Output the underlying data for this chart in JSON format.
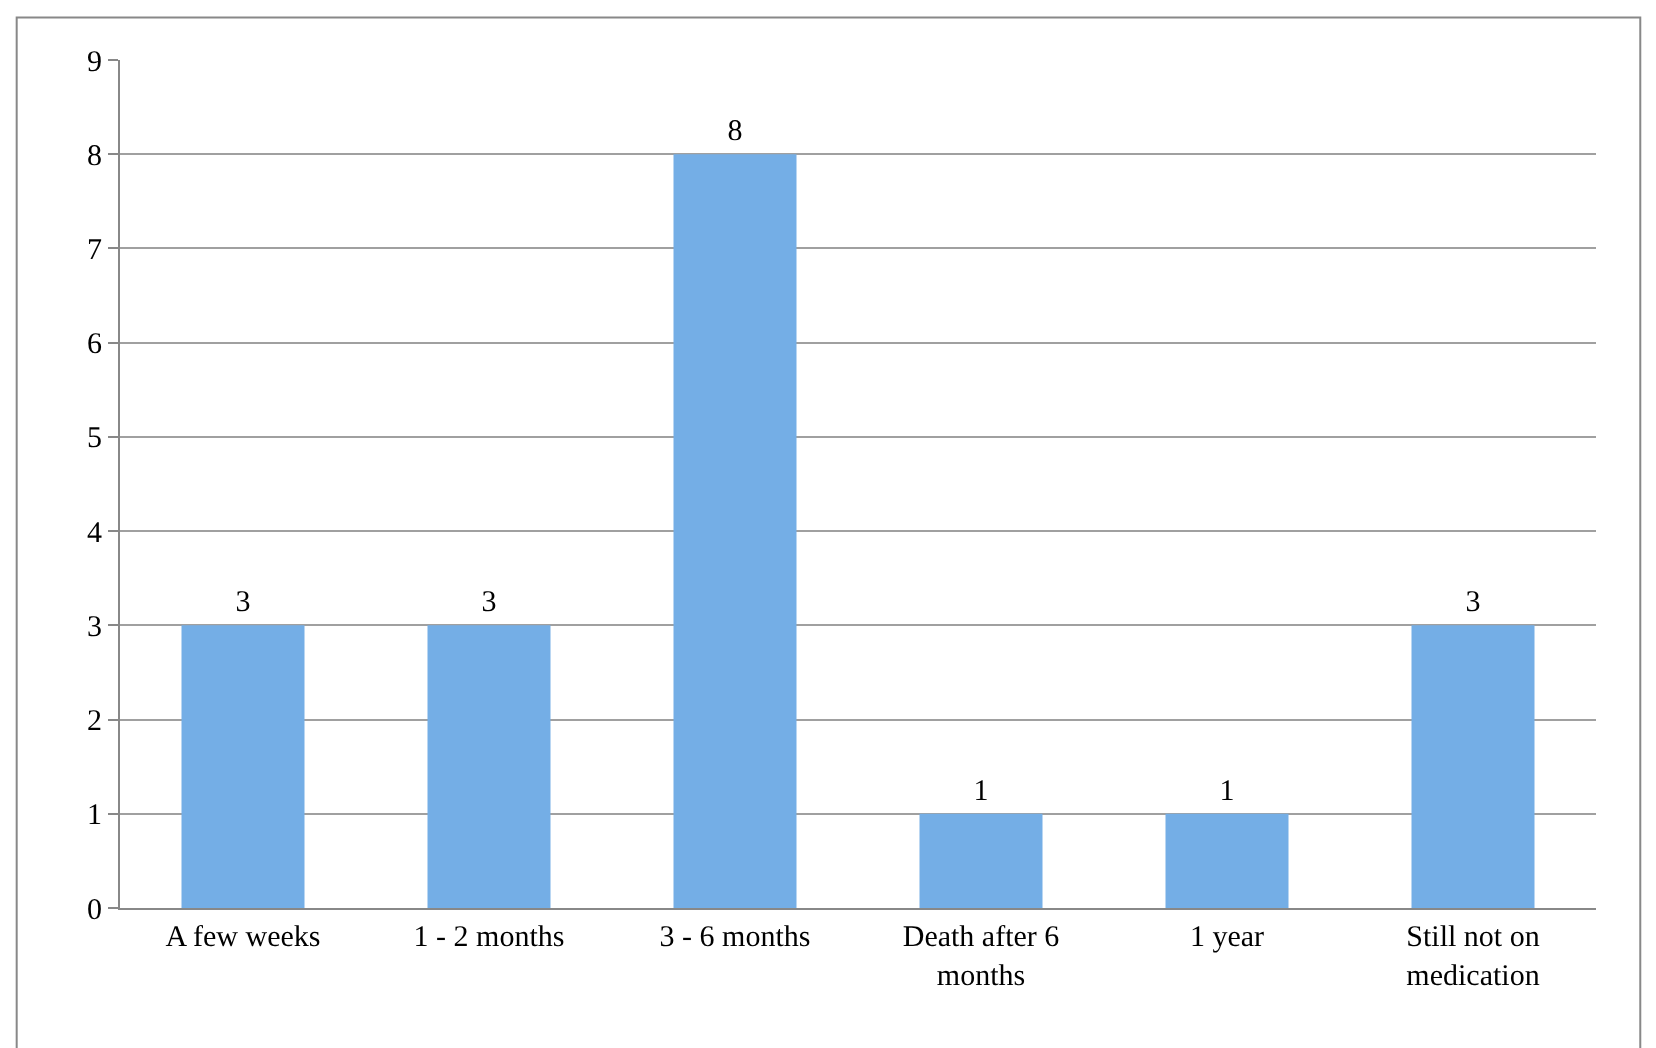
{
  "chart_data": {
    "type": "bar",
    "categories": [
      "A few weeks",
      "1 - 2 months",
      "3 - 6 months",
      "Death after 6 months",
      "1 year",
      "Still not on medication"
    ],
    "values": [
      3,
      3,
      8,
      1,
      1,
      3
    ],
    "color": "#74aee6",
    "ylim": [
      0,
      9
    ],
    "yticks": [
      0,
      1,
      2,
      3,
      4,
      5,
      6,
      7,
      8,
      9
    ],
    "grid": "y",
    "data_labels": true
  }
}
